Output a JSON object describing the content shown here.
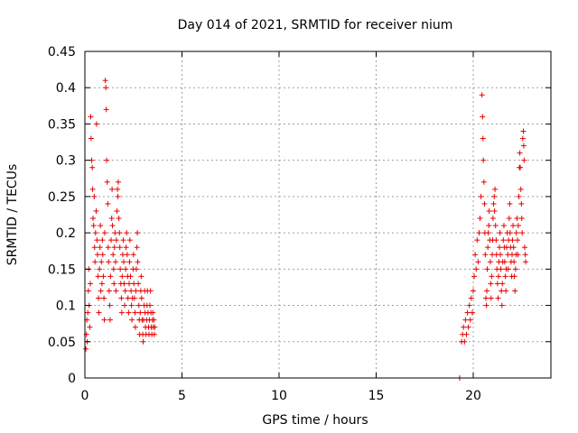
{
  "chart_data": {
    "type": "scatter",
    "title": "Day 014 of 2021, SRMTID for receiver nium",
    "xlabel": "GPS time / hours",
    "ylabel": "SRMTID / TECUs",
    "xlim": [
      0,
      24
    ],
    "ylim": [
      0,
      0.45
    ],
    "xticks": [
      0,
      5,
      10,
      15,
      20
    ],
    "xtick_labels": [
      "0",
      "5",
      "10",
      "15",
      "20"
    ],
    "yticks": [
      0,
      0.05,
      0.1,
      0.15,
      0.2,
      0.25,
      0.3,
      0.35,
      0.4,
      0.45
    ],
    "ytick_labels": [
      "0",
      "0.05",
      "0.1",
      "0.15",
      "0.2",
      "0.25",
      "0.3",
      "0.35",
      "0.4",
      "0.45"
    ],
    "grid": true,
    "marker": "+",
    "marker_color": "#e60000",
    "series": [
      {
        "name": "SRMTID",
        "points": [
          [
            0.05,
            0.04
          ],
          [
            0.08,
            0.06
          ],
          [
            0.1,
            0.08
          ],
          [
            0.12,
            0.05
          ],
          [
            0.15,
            0.09
          ],
          [
            0.18,
            0.12
          ],
          [
            0.2,
            0.15
          ],
          [
            0.22,
            0.1
          ],
          [
            0.25,
            0.07
          ],
          [
            0.28,
            0.13
          ],
          [
            0.3,
            0.36
          ],
          [
            0.32,
            0.33
          ],
          [
            0.35,
            0.3
          ],
          [
            0.38,
            0.29
          ],
          [
            0.4,
            0.26
          ],
          [
            0.42,
            0.22
          ],
          [
            0.45,
            0.21
          ],
          [
            0.48,
            0.25
          ],
          [
            0.5,
            0.18
          ],
          [
            0.52,
            0.16
          ],
          [
            0.55,
            0.2
          ],
          [
            0.58,
            0.23
          ],
          [
            0.6,
            0.35
          ],
          [
            0.62,
            0.19
          ],
          [
            0.65,
            0.17
          ],
          [
            0.68,
            0.14
          ],
          [
            0.7,
            0.11
          ],
          [
            0.72,
            0.09
          ],
          [
            0.75,
            0.15
          ],
          [
            0.78,
            0.18
          ],
          [
            0.8,
            0.21
          ],
          [
            0.82,
            0.12
          ],
          [
            0.85,
            0.16
          ],
          [
            0.88,
            0.13
          ],
          [
            0.9,
            0.19
          ],
          [
            0.92,
            0.17
          ],
          [
            0.95,
            0.14
          ],
          [
            0.98,
            0.11
          ],
          [
            1.0,
            0.08
          ],
          [
            1.02,
            0.2
          ],
          [
            1.05,
            0.41
          ],
          [
            1.08,
            0.4
          ],
          [
            1.1,
            0.37
          ],
          [
            1.12,
            0.3
          ],
          [
            1.15,
            0.27
          ],
          [
            1.18,
            0.24
          ],
          [
            1.2,
            0.18
          ],
          [
            1.22,
            0.16
          ],
          [
            1.25,
            0.12
          ],
          [
            1.28,
            0.1
          ],
          [
            1.3,
            0.08
          ],
          [
            1.32,
            0.14
          ],
          [
            1.35,
            0.19
          ],
          [
            1.38,
            0.22
          ],
          [
            1.4,
            0.26
          ],
          [
            1.42,
            0.21
          ],
          [
            1.45,
            0.17
          ],
          [
            1.48,
            0.15
          ],
          [
            1.5,
            0.13
          ],
          [
            1.52,
            0.18
          ],
          [
            1.55,
            0.2
          ],
          [
            1.58,
            0.16
          ],
          [
            1.6,
            0.12
          ],
          [
            1.62,
            0.19
          ],
          [
            1.65,
            0.23
          ],
          [
            1.68,
            0.26
          ],
          [
            1.7,
            0.25
          ],
          [
            1.72,
            0.27
          ],
          [
            1.75,
            0.22
          ],
          [
            1.78,
            0.2
          ],
          [
            1.8,
            0.18
          ],
          [
            1.82,
            0.15
          ],
          [
            1.85,
            0.13
          ],
          [
            1.88,
            0.11
          ],
          [
            1.9,
            0.09
          ],
          [
            1.92,
            0.14
          ],
          [
            1.95,
            0.17
          ],
          [
            1.98,
            0.19
          ],
          [
            2.0,
            0.16
          ],
          [
            2.02,
            0.13
          ],
          [
            2.05,
            0.1
          ],
          [
            2.08,
            0.12
          ],
          [
            2.1,
            0.15
          ],
          [
            2.12,
            0.18
          ],
          [
            2.15,
            0.2
          ],
          [
            2.18,
            0.17
          ],
          [
            2.2,
            0.14
          ],
          [
            2.22,
            0.11
          ],
          [
            2.25,
            0.09
          ],
          [
            2.28,
            0.13
          ],
          [
            2.3,
            0.16
          ],
          [
            2.32,
            0.19
          ],
          [
            2.35,
            0.14
          ],
          [
            2.38,
            0.12
          ],
          [
            2.4,
            0.1
          ],
          [
            2.42,
            0.08
          ],
          [
            2.45,
            0.11
          ],
          [
            2.48,
            0.15
          ],
          [
            2.5,
            0.17
          ],
          [
            2.52,
            0.13
          ],
          [
            2.55,
            0.11
          ],
          [
            2.58,
            0.09
          ],
          [
            2.6,
            0.07
          ],
          [
            2.62,
            0.12
          ],
          [
            2.65,
            0.15
          ],
          [
            2.68,
            0.18
          ],
          [
            2.7,
            0.2
          ],
          [
            2.72,
            0.16
          ],
          [
            2.75,
            0.13
          ],
          [
            2.78,
            0.1
          ],
          [
            2.8,
            0.08
          ],
          [
            2.82,
            0.06
          ],
          [
            2.85,
            0.09
          ],
          [
            2.88,
            0.12
          ],
          [
            2.9,
            0.14
          ],
          [
            2.92,
            0.11
          ],
          [
            2.95,
            0.08
          ],
          [
            2.98,
            0.06
          ],
          [
            3.0,
            0.05
          ],
          [
            3.02,
            0.08
          ],
          [
            3.05,
            0.1
          ],
          [
            3.08,
            0.12
          ],
          [
            3.1,
            0.09
          ],
          [
            3.12,
            0.07
          ],
          [
            3.15,
            0.06
          ],
          [
            3.18,
            0.08
          ],
          [
            3.2,
            0.1
          ],
          [
            3.22,
            0.12
          ],
          [
            3.25,
            0.09
          ],
          [
            3.28,
            0.07
          ],
          [
            3.3,
            0.06
          ],
          [
            3.32,
            0.08
          ],
          [
            3.35,
            0.1
          ],
          [
            3.38,
            0.12
          ],
          [
            3.4,
            0.09
          ],
          [
            3.42,
            0.07
          ],
          [
            3.45,
            0.06
          ],
          [
            3.48,
            0.08
          ],
          [
            3.5,
            0.09
          ],
          [
            3.52,
            0.07
          ],
          [
            3.55,
            0.08
          ],
          [
            3.58,
            0.06
          ],
          [
            3.6,
            0.07
          ],
          [
            19.3,
            0.0
          ],
          [
            19.4,
            0.05
          ],
          [
            19.45,
            0.06
          ],
          [
            19.5,
            0.07
          ],
          [
            19.55,
            0.05
          ],
          [
            19.6,
            0.08
          ],
          [
            19.65,
            0.06
          ],
          [
            19.7,
            0.09
          ],
          [
            19.75,
            0.07
          ],
          [
            19.8,
            0.1
          ],
          [
            19.85,
            0.08
          ],
          [
            19.9,
            0.11
          ],
          [
            19.95,
            0.09
          ],
          [
            20.0,
            0.12
          ],
          [
            20.05,
            0.14
          ],
          [
            20.1,
            0.17
          ],
          [
            20.15,
            0.15
          ],
          [
            20.2,
            0.19
          ],
          [
            20.25,
            0.16
          ],
          [
            20.3,
            0.2
          ],
          [
            20.35,
            0.22
          ],
          [
            20.4,
            0.25
          ],
          [
            20.45,
            0.39
          ],
          [
            20.48,
            0.36
          ],
          [
            20.5,
            0.33
          ],
          [
            20.52,
            0.3
          ],
          [
            20.55,
            0.27
          ],
          [
            20.58,
            0.24
          ],
          [
            20.6,
            0.2
          ],
          [
            20.62,
            0.17
          ],
          [
            20.65,
            0.11
          ],
          [
            20.68,
            0.1
          ],
          [
            20.7,
            0.12
          ],
          [
            20.72,
            0.15
          ],
          [
            20.75,
            0.18
          ],
          [
            20.78,
            0.2
          ],
          [
            20.8,
            0.21
          ],
          [
            20.82,
            0.23
          ],
          [
            20.85,
            0.19
          ],
          [
            20.88,
            0.16
          ],
          [
            20.9,
            0.13
          ],
          [
            20.92,
            0.11
          ],
          [
            20.95,
            0.14
          ],
          [
            20.98,
            0.17
          ],
          [
            21.0,
            0.19
          ],
          [
            21.02,
            0.22
          ],
          [
            21.05,
            0.24
          ],
          [
            21.08,
            0.25
          ],
          [
            21.1,
            0.23
          ],
          [
            21.12,
            0.26
          ],
          [
            21.15,
            0.21
          ],
          [
            21.18,
            0.19
          ],
          [
            21.2,
            0.17
          ],
          [
            21.22,
            0.15
          ],
          [
            21.25,
            0.13
          ],
          [
            21.28,
            0.11
          ],
          [
            21.3,
            0.14
          ],
          [
            21.32,
            0.16
          ],
          [
            21.35,
            0.18
          ],
          [
            21.38,
            0.2
          ],
          [
            21.4,
            0.17
          ],
          [
            21.42,
            0.15
          ],
          [
            21.45,
            0.12
          ],
          [
            21.48,
            0.1
          ],
          [
            21.5,
            0.13
          ],
          [
            21.52,
            0.16
          ],
          [
            21.55,
            0.19
          ],
          [
            21.58,
            0.21
          ],
          [
            21.6,
            0.18
          ],
          [
            21.62,
            0.16
          ],
          [
            21.65,
            0.14
          ],
          [
            21.68,
            0.12
          ],
          [
            21.7,
            0.15
          ],
          [
            21.72,
            0.18
          ],
          [
            21.75,
            0.2
          ],
          [
            21.78,
            0.17
          ],
          [
            21.8,
            0.15
          ],
          [
            21.82,
            0.19
          ],
          [
            21.85,
            0.22
          ],
          [
            21.88,
            0.24
          ],
          [
            21.9,
            0.2
          ],
          [
            21.92,
            0.18
          ],
          [
            21.95,
            0.16
          ],
          [
            21.98,
            0.14
          ],
          [
            22.0,
            0.17
          ],
          [
            22.02,
            0.19
          ],
          [
            22.05,
            0.21
          ],
          [
            22.08,
            0.18
          ],
          [
            22.1,
            0.16
          ],
          [
            22.12,
            0.14
          ],
          [
            22.15,
            0.12
          ],
          [
            22.18,
            0.15
          ],
          [
            22.2,
            0.17
          ],
          [
            22.22,
            0.2
          ],
          [
            22.25,
            0.22
          ],
          [
            22.28,
            0.19
          ],
          [
            22.3,
            0.17
          ],
          [
            22.32,
            0.21
          ],
          [
            22.35,
            0.25
          ],
          [
            22.38,
            0.29
          ],
          [
            22.4,
            0.31
          ],
          [
            22.42,
            0.29
          ],
          [
            22.45,
            0.26
          ],
          [
            22.48,
            0.24
          ],
          [
            22.5,
            0.22
          ],
          [
            22.52,
            0.2
          ],
          [
            22.55,
            0.33
          ],
          [
            22.58,
            0.34
          ],
          [
            22.6,
            0.32
          ],
          [
            22.62,
            0.3
          ],
          [
            22.65,
            0.18
          ],
          [
            22.68,
            0.17
          ],
          [
            22.7,
            0.16
          ]
        ]
      }
    ]
  }
}
